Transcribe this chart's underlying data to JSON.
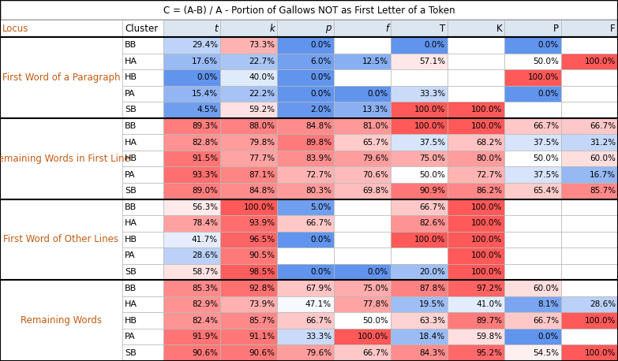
{
  "title": "C = (A-B) / A - Portion of Gallows NOT as First Letter of a Token",
  "columns": [
    "Locus",
    "Cluster",
    "t",
    "k",
    "p",
    "f",
    "T",
    "K",
    "P",
    "F"
  ],
  "sections": [
    {
      "locus": "First Word of a Paragraph",
      "rows": [
        {
          "cluster": "BB",
          "t": 29.4,
          "k": 73.3,
          "p": 0.0,
          "f": null,
          "T": 0.0,
          "K": null,
          "P": 0.0,
          "F": null
        },
        {
          "cluster": "HA",
          "t": 17.6,
          "k": 22.7,
          "p": 6.0,
          "f": 12.5,
          "T": 57.1,
          "K": null,
          "P": 50.0,
          "F": 100.0
        },
        {
          "cluster": "HB",
          "t": 0.0,
          "k": 40.0,
          "p": 0.0,
          "f": null,
          "T": null,
          "K": null,
          "P": 100.0,
          "F": null
        },
        {
          "cluster": "PA",
          "t": 15.4,
          "k": 22.2,
          "p": 0.0,
          "f": 0.0,
          "T": 33.3,
          "K": null,
          "P": 0.0,
          "F": null
        },
        {
          "cluster": "SB",
          "t": 4.5,
          "k": 59.2,
          "p": 2.0,
          "f": 13.3,
          "T": 100.0,
          "K": 100.0,
          "P": null,
          "F": null
        }
      ]
    },
    {
      "locus": "Remaining Words in First Line",
      "rows": [
        {
          "cluster": "BB",
          "t": 89.3,
          "k": 88.0,
          "p": 84.8,
          "f": 81.0,
          "T": 100.0,
          "K": 100.0,
          "P": 66.7,
          "F": 66.7
        },
        {
          "cluster": "HA",
          "t": 82.8,
          "k": 79.8,
          "p": 89.8,
          "f": 65.7,
          "T": 37.5,
          "K": 68.2,
          "P": 37.5,
          "F": 31.2
        },
        {
          "cluster": "HB",
          "t": 91.5,
          "k": 77.7,
          "p": 83.9,
          "f": 79.6,
          "T": 75.0,
          "K": 80.0,
          "P": 50.0,
          "F": 60.0
        },
        {
          "cluster": "PA",
          "t": 93.3,
          "k": 87.1,
          "p": 72.7,
          "f": 70.6,
          "T": 50.0,
          "K": 72.7,
          "P": 37.5,
          "F": 16.7
        },
        {
          "cluster": "SB",
          "t": 89.0,
          "k": 84.8,
          "p": 80.3,
          "f": 69.8,
          "T": 90.9,
          "K": 86.2,
          "P": 65.4,
          "F": 85.7
        }
      ]
    },
    {
      "locus": "First Word of Other Lines",
      "rows": [
        {
          "cluster": "BB",
          "t": 56.3,
          "k": 100.0,
          "p": 5.0,
          "f": null,
          "T": 66.7,
          "K": 100.0,
          "P": null,
          "F": null
        },
        {
          "cluster": "HA",
          "t": 78.4,
          "k": 93.9,
          "p": 66.7,
          "f": null,
          "T": 82.6,
          "K": 100.0,
          "P": null,
          "F": null
        },
        {
          "cluster": "HB",
          "t": 41.7,
          "k": 96.5,
          "p": 0.0,
          "f": null,
          "T": 100.0,
          "K": 100.0,
          "P": null,
          "F": null
        },
        {
          "cluster": "PA",
          "t": 28.6,
          "k": 90.5,
          "p": null,
          "f": null,
          "T": null,
          "K": 100.0,
          "P": null,
          "F": null
        },
        {
          "cluster": "SB",
          "t": 58.7,
          "k": 98.5,
          "p": 0.0,
          "f": 0.0,
          "T": 20.0,
          "K": 100.0,
          "P": null,
          "F": null
        }
      ]
    },
    {
      "locus": "Remaining Words",
      "rows": [
        {
          "cluster": "BB",
          "t": 85.3,
          "k": 92.8,
          "p": 67.9,
          "f": 75.0,
          "T": 87.8,
          "K": 97.2,
          "P": 60.0,
          "F": null
        },
        {
          "cluster": "HA",
          "t": 82.9,
          "k": 73.9,
          "p": 47.1,
          "f": 77.8,
          "T": 19.5,
          "K": 41.0,
          "P": 8.1,
          "F": 28.6
        },
        {
          "cluster": "HB",
          "t": 82.4,
          "k": 85.7,
          "p": 66.7,
          "f": 50.0,
          "T": 63.3,
          "K": 89.7,
          "P": 66.7,
          "F": 100.0
        },
        {
          "cluster": "PA",
          "t": 91.9,
          "k": 91.1,
          "p": 33.3,
          "f": 100.0,
          "T": 18.4,
          "K": 59.8,
          "P": 0.0,
          "F": null
        },
        {
          "cluster": "SB",
          "t": 90.6,
          "k": 90.6,
          "p": 79.6,
          "f": 66.7,
          "T": 84.3,
          "K": 95.2,
          "P": 54.5,
          "F": 100.0
        }
      ]
    }
  ],
  "locus_text_color": "#c55a11",
  "header_color": "#2e75b6",
  "grid_color": "#b8b8b8",
  "thick_line_color": "#000000",
  "title_fontsize": 8.5,
  "header_fontsize": 8.5,
  "data_fontsize": 7.5,
  "locus_fontsize": 8.5,
  "cluster_fontsize": 8.0
}
